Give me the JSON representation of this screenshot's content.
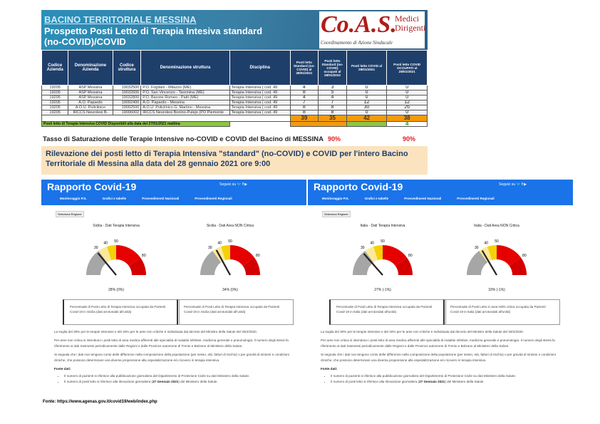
{
  "header": {
    "title": "BACINO TERRITORIALE MESSINA",
    "subtitle": "Prospetto Posti Letto di Terapia Intesiva standard (no-COVID)/COVID",
    "logo": {
      "main": "Co.A.S.",
      "side1": "Medici",
      "side2": "Dirigenti",
      "caption": "Coordinamento di Azione Sindacale"
    }
  },
  "table": {
    "columns": [
      "Codice Azienda",
      "Denominazione Azienda",
      "Codice struttura",
      "Denominazione struttura",
      "Disciplina",
      "Posti letto Standard (no-COVID) al 28/01/2021",
      "Posti letto Standard (no-COVID) occupati al 28/01/2022",
      "Posti letto COVID al 28/01/2021",
      "Posti letto COVID OCCUPATI al 28/01/2021"
    ],
    "rows": [
      [
        "19205",
        "ASP Messina",
        "19032500",
        "P.O. Fogliani - Milazzo (ME)",
        "Terapia Intensiva ( cod. 49",
        "4",
        "3",
        "0",
        "0"
      ],
      [
        "19205",
        "ASP Messina",
        "19032600",
        "P.O. San Vincenzo - Taormina (ME)",
        "Terapia Intensiva ( cod. 49",
        "8",
        "5",
        "0",
        "0"
      ],
      [
        "19205",
        "ASP Messina",
        "19032800",
        "P.O. Barone Romeo - Patti (ME)",
        "Terapia Intensiva ( cod. 49",
        "4",
        "4",
        "0",
        "0"
      ],
      [
        "19205",
        "A.O. Papardo",
        "19092400",
        "A.O. Papardo - Messina",
        "Terapia Intensiva ( cod. 49",
        "7",
        "7",
        "12",
        "12"
      ],
      [
        "19205",
        "A.O.U. Policlinico",
        "19092500",
        "A.O.U. Policlinico G. Martino - Messina",
        "Terapia Intensiva ( cod. 49",
        "8",
        "8",
        "30",
        "26"
      ],
      [
        "19205",
        "IRCCS Neurolesi B-",
        "19096002",
        "IRCCS Neurolesi Bonino-Pulejo (PO Piemonte",
        "Terapia Intensiva ( cod. 49",
        "8",
        "8",
        "0",
        "0"
      ]
    ],
    "totals": [
      "39",
      "35",
      "42",
      "38"
    ],
    "available_label": "Posti letto di Terapia Intensiva COVID Disponibili alla data del 27/01/2021 mattina",
    "available_value": "4"
  },
  "saturation": {
    "label": "Tasso di Saturazione delle Terapie Intensive no-COVID e COVID del Bacino di MESSINA",
    "noncovid": "90%",
    "covid": "90%"
  },
  "rilevazione": "Rilevazione dei posti letto di Terapia Intensiva \"standard\" (no-COVID) e COVID per l'intero Bacino Territoriale di Messina alla data del 28 gennaio 2021 ore 9:00",
  "site": {
    "title": "Rapporto Covid-19",
    "follow": "Seguici su",
    "nav": [
      "Monitoraggio P.S.",
      "Grafici e tabelle",
      "Provvedimenti Nazionali",
      "Provvedimenti Regionali"
    ],
    "select": "Seleziona Regione"
  },
  "gauge_colors": {
    "grey": "#a6a6a6",
    "lightyellow": "#fbe99a",
    "yellow": "#f5d10a",
    "red": "#e60000",
    "darkred": "#d40000"
  },
  "panels": [
    {
      "gauges": [
        {
          "title": "Sicilia - Dati Terapia Intensiva",
          "value": 28,
          "pct": "28% (0%)",
          "desc": "Percentuale di Posti Letto di Terapia Intensiva occupata da Pazienti Covid-19 in Sicilia (dati arrotondati all'unità)"
        },
        {
          "title": "Sicilia - Dati Area NON Critica",
          "value": 34,
          "pct": "34% (0%)",
          "desc": "Percentuale di Posti Letto di Terapia Intensiva occupata da Pazienti Covid-19 in Sicilia (dati arrotondati all'unità)"
        }
      ]
    },
    {
      "gauges": [
        {
          "title": "Italia - Dati Terapia Intensiva",
          "value": 27,
          "pct": "27% (-1%)",
          "desc": "Percentuale di Posti Letto di Terapia Intensiva occupata da Pazienti Covid-19 in Italia (dati arrotondati all'unità)"
        },
        {
          "title": "Italia - Dati Area NON Critica",
          "value": 33,
          "pct": "33% (-1%)",
          "desc": "Percentuale di Posti Letto in area NON critica occupata da Pazienti Covid-19 in Italia (dati arrotondati all'unità)"
        }
      ]
    }
  ],
  "gauge_ticks": [
    "30",
    "40",
    "50",
    "80"
  ],
  "notes": {
    "p1": "La soglia del 30% per le terapie intensive e del 40% per le aree non critiche è individuata dal decreto del Ministro della Salute del 30/4/2020.",
    "p2": "Per aree non critica si intendono i posti letto di area medica afferenti alle specialità di malattie infettive, medicina generale e pneumologia. Il numero degli stessi fa riferimento ai dati trasmessi periodicamente dalle Regioni e dalle Province autonome di Trento e Bolzano al Ministero della Salute.",
    "p3": "Si segnala che i dati non tengono conto delle differenze nella composizione della popolazione (per sesso, età, fattori di rischio) o per gravità di sintomi e condizioni cliniche, che possono determinare una diversa propensione alla ospedalizzazione e/o ricovero in terapia intensiva.",
    "fonte": "Fonte dati:",
    "b1": "Il numero di pazienti si riferisce alla pubblicazione giornaliera del Dipartimento di Protezione Civile su dati Ministero della Salute.",
    "b2a": "Il numero di posti letto si riferisce alla rilevazione giornaliera (",
    "b2b": "27 Gennaio 2021",
    "b2c": ") del Ministero della Salute."
  },
  "source": "Fonte: https://www.agenas.gov.it/covid19/web/index.php"
}
